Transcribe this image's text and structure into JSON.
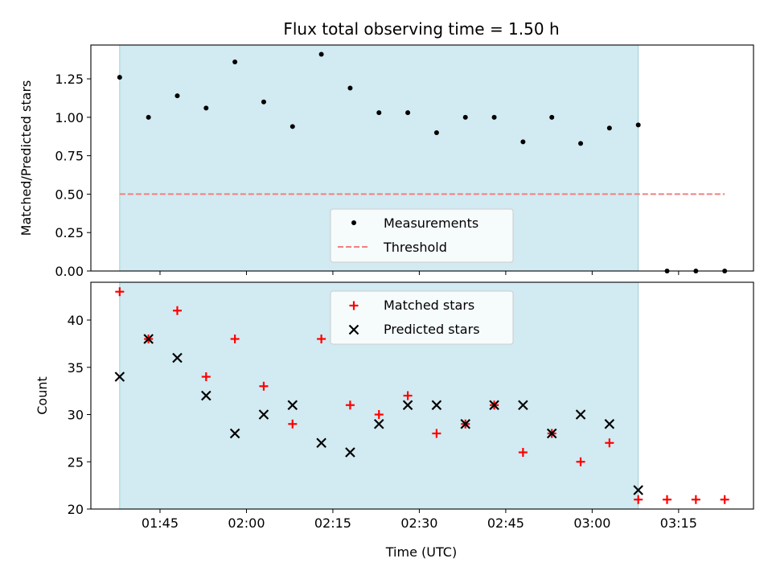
{
  "chart_data": [
    {
      "type": "scatter",
      "title": "Flux total observing time = 1.50 h",
      "xlabel": "",
      "ylabel": "Matched/Predicted stars",
      "ylim": [
        0,
        1.47
      ],
      "yticks": [
        "0.00",
        "0.25",
        "0.50",
        "0.75",
        "1.00",
        "1.25"
      ],
      "shaded_span": [
        "01:38",
        "03:08"
      ],
      "threshold": {
        "name": "Threshold",
        "value": 0.5,
        "x_range": [
          "01:38",
          "03:23"
        ],
        "color": "#f08080"
      },
      "series": [
        {
          "name": "Measurements",
          "color": "#000000",
          "marker": "dot",
          "points": [
            [
              "01:38",
              1.26
            ],
            [
              "01:43",
              1.0
            ],
            [
              "01:48",
              1.14
            ],
            [
              "01:53",
              1.06
            ],
            [
              "01:58",
              1.36
            ],
            [
              "02:03",
              1.1
            ],
            [
              "02:08",
              0.94
            ],
            [
              "02:13",
              1.41
            ],
            [
              "02:18",
              1.19
            ],
            [
              "02:23",
              1.03
            ],
            [
              "02:28",
              1.03
            ],
            [
              "02:33",
              0.9
            ],
            [
              "02:38",
              1.0
            ],
            [
              "02:43",
              1.0
            ],
            [
              "02:48",
              0.84
            ],
            [
              "02:53",
              1.0
            ],
            [
              "02:58",
              0.83
            ],
            [
              "03:03",
              0.93
            ],
            [
              "03:08",
              0.95
            ],
            [
              "03:13",
              0.0
            ],
            [
              "03:18",
              0.0
            ],
            [
              "03:23",
              0.0
            ]
          ]
        }
      ],
      "legend": [
        "Measurements",
        "Threshold"
      ],
      "legend_position": "lower-center"
    },
    {
      "type": "scatter",
      "title": "",
      "xlabel": "Time (UTC)",
      "ylabel": "Count",
      "ylim": [
        20,
        44
      ],
      "yticks": [
        "20",
        "25",
        "30",
        "35",
        "40"
      ],
      "xticks": [
        "01:45",
        "02:00",
        "02:15",
        "02:30",
        "02:45",
        "03:00",
        "03:15"
      ],
      "shaded_span": [
        "01:38",
        "03:08"
      ],
      "series": [
        {
          "name": "Matched stars",
          "color": "#ff0000",
          "marker": "plus",
          "points": [
            [
              "01:38",
              43
            ],
            [
              "01:43",
              38
            ],
            [
              "01:48",
              41
            ],
            [
              "01:53",
              34
            ],
            [
              "01:58",
              38
            ],
            [
              "02:03",
              33
            ],
            [
              "02:08",
              29
            ],
            [
              "02:13",
              38
            ],
            [
              "02:18",
              31
            ],
            [
              "02:23",
              30
            ],
            [
              "02:28",
              32
            ],
            [
              "02:33",
              28
            ],
            [
              "02:38",
              29
            ],
            [
              "02:43",
              31
            ],
            [
              "02:48",
              26
            ],
            [
              "02:53",
              28
            ],
            [
              "02:58",
              25
            ],
            [
              "03:03",
              27
            ],
            [
              "03:08",
              21
            ],
            [
              "03:13",
              21
            ],
            [
              "03:18",
              21
            ],
            [
              "03:23",
              21
            ]
          ]
        },
        {
          "name": "Predicted stars",
          "color": "#000000",
          "marker": "x",
          "points": [
            [
              "01:38",
              34
            ],
            [
              "01:43",
              38
            ],
            [
              "01:48",
              36
            ],
            [
              "01:53",
              32
            ],
            [
              "01:58",
              28
            ],
            [
              "02:03",
              30
            ],
            [
              "02:08",
              31
            ],
            [
              "02:13",
              27
            ],
            [
              "02:18",
              26
            ],
            [
              "02:23",
              29
            ],
            [
              "02:28",
              31
            ],
            [
              "02:33",
              31
            ],
            [
              "02:38",
              29
            ],
            [
              "02:43",
              31
            ],
            [
              "02:48",
              31
            ],
            [
              "02:53",
              28
            ],
            [
              "02:58",
              30
            ],
            [
              "03:03",
              29
            ],
            [
              "03:08",
              22
            ]
          ]
        }
      ],
      "legend": [
        "Matched stars",
        "Predicted stars"
      ],
      "legend_position": "upper-center"
    }
  ],
  "colors": {
    "span_fill": "#add8e6",
    "span_edge": "#9ccfda"
  }
}
